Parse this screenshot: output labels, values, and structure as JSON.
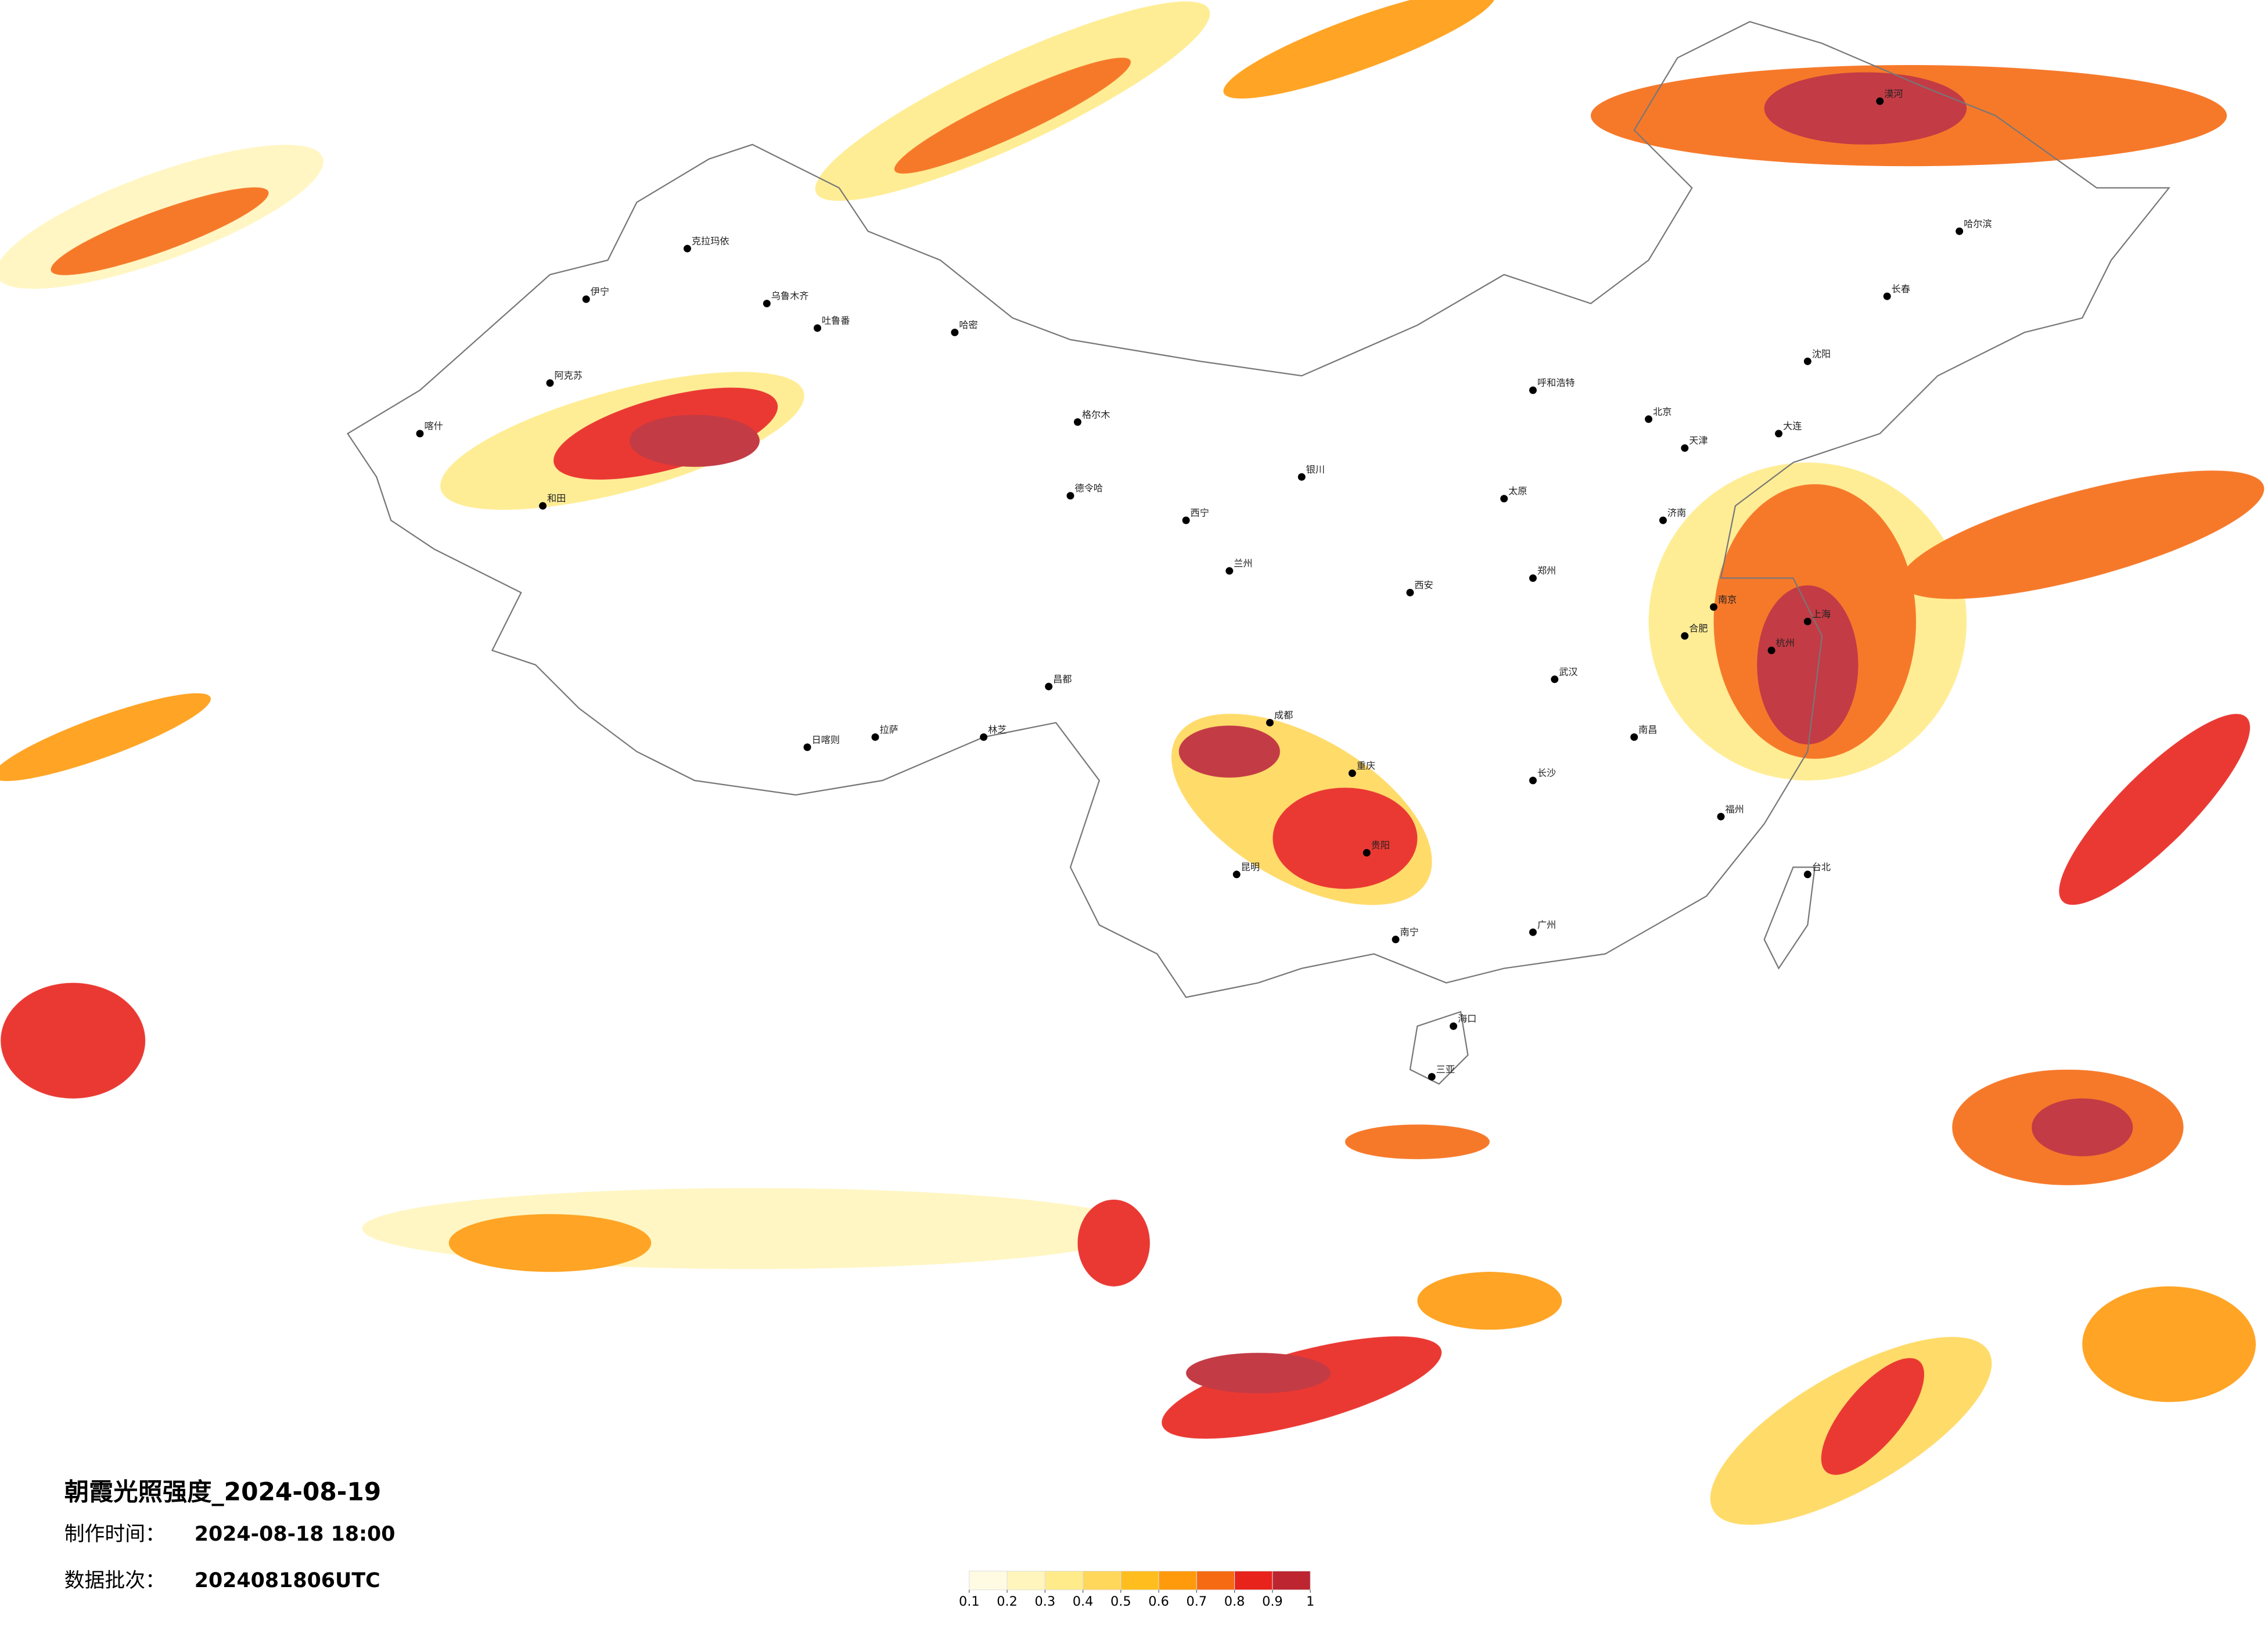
{
  "title": "朝霞光照强度_2024-08-19",
  "made_label": "制作时间：",
  "made_time": "2024-08-18 18:00",
  "batch_label": "数据批次：",
  "batch": "2024081806UTC",
  "colorbar": {
    "ticks": [
      0.1,
      0.2,
      0.3,
      0.4,
      0.5,
      0.6,
      0.7,
      0.8,
      0.9,
      1
    ],
    "colors": [
      "#fffbe3",
      "#fff5bd",
      "#ffeb8a",
      "#ffd75a",
      "#ffbe1e",
      "#ff9a0c",
      "#f56a12",
      "#e8231c",
      "#bd2530"
    ]
  },
  "cities": [
    "克拉玛依",
    "伊宁",
    "乌鲁木齐",
    "吐鲁番",
    "哈密",
    "阿克苏",
    "喀什",
    "和田",
    "格尔木",
    "德令哈",
    "西宁",
    "兰州",
    "拉萨",
    "日喀则",
    "林芝",
    "昌都",
    "成都",
    "重庆",
    "贵阳",
    "昆明",
    "南宁",
    "海口",
    "三亚",
    "广州",
    "福州",
    "台北",
    "杭州",
    "上海",
    "南京",
    "武汉",
    "长沙",
    "郑州",
    "西安",
    "太原",
    "北京",
    "天津",
    "济南",
    "呼和浩特",
    "沈阳",
    "长春",
    "哈尔滨",
    "大连",
    "漠河",
    "银川",
    "南昌",
    "合肥"
  ]
}
